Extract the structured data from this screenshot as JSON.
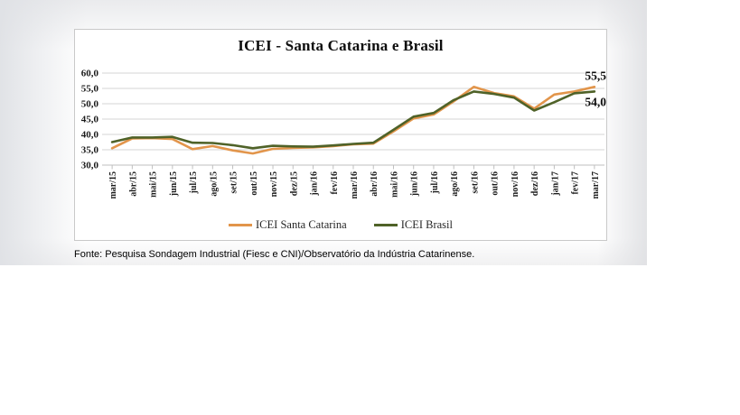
{
  "page": {
    "footer": "Fonte: Pesquisa Sondagem Industrial (Fiesc e CNI)/Observatório da Indústria Catarinense."
  },
  "chart_data": {
    "type": "line",
    "title": "ICEI - Santa Catarina e Brasil",
    "categories": [
      "mar/15",
      "abr/15",
      "mai/15",
      "jun/15",
      "jul/15",
      "ago/15",
      "set/15",
      "out/15",
      "nov/15",
      "dez/15",
      "jan/16",
      "fev/16",
      "mar/16",
      "abr/16",
      "mai/16",
      "jun/16",
      "jul/16",
      "ago/16",
      "set/16",
      "out/16",
      "nov/16",
      "dez/16",
      "jan/17",
      "fev/17",
      "mar/17"
    ],
    "series": [
      {
        "name": "ICEI Santa Catarina",
        "color": "#E2954B",
        "values": [
          35.5,
          38.7,
          38.8,
          38.5,
          35.2,
          36.2,
          34.8,
          33.8,
          35.3,
          35.6,
          35.8,
          36.2,
          36.8,
          37.0,
          41.0,
          45.2,
          46.5,
          50.8,
          55.5,
          53.5,
          52.4,
          48.4,
          53.0,
          54.0,
          55.5
        ]
      },
      {
        "name": "ICEI Brasil",
        "color": "#4F6228",
        "values": [
          37.5,
          39.0,
          39.0,
          39.2,
          37.3,
          37.2,
          36.5,
          35.5,
          36.3,
          36.1,
          36.0,
          36.4,
          36.9,
          37.3,
          41.5,
          45.8,
          47.0,
          51.2,
          54.0,
          53.2,
          52.0,
          47.8,
          50.5,
          53.4,
          54.0
        ]
      }
    ],
    "ylim": [
      30,
      60
    ],
    "ytick_step": 5,
    "y_tick_labels": [
      "60,0",
      "55,0",
      "50,0",
      "45,0",
      "40,0",
      "35,0",
      "30,0"
    ],
    "grid": true,
    "legend_position": "bottom",
    "end_labels": [
      {
        "series": "ICEI Santa Catarina",
        "text": "55,5"
      },
      {
        "series": "ICEI Brasil",
        "text": "54,0"
      }
    ],
    "colors": {
      "gridline": "#D6D6D6",
      "axis": "#BFBFBF",
      "frame_border": "#C9C9C9",
      "text": "#1A1A1A"
    }
  }
}
